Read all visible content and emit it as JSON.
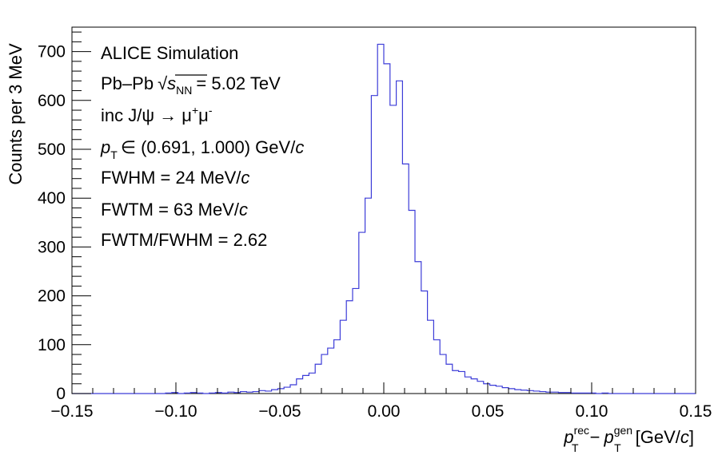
{
  "chart_data": {
    "type": "histogram",
    "xlabel": {
      "p1": "p",
      "sub1": "T",
      "sup1": "rec",
      "minus": "−",
      "p2": "p",
      "sub2": "T",
      "sup2": "gen",
      "unit_open": "[GeV/",
      "unit_c": "c",
      "unit_close": "]"
    },
    "ylabel": "Counts per 3 MeV",
    "xlim": [
      -0.15,
      0.15
    ],
    "ylim": [
      0,
      750
    ],
    "xticks": [
      -0.15,
      -0.1,
      -0.05,
      0.0,
      0.05,
      0.1,
      0.15
    ],
    "xtick_labels": [
      "−0.15",
      "−0.10",
      "−0.05",
      "0.00",
      "0.05",
      "0.10",
      "0.15"
    ],
    "yticks": [
      0,
      100,
      200,
      300,
      400,
      500,
      600,
      700
    ],
    "ytick_labels": [
      "0",
      "100",
      "200",
      "300",
      "400",
      "500",
      "600",
      "700"
    ],
    "bin_width": 0.003,
    "line_color": "#3c3cd8",
    "annotations": {
      "line1": "ALICE Simulation",
      "line2": {
        "pre": "Pb–Pb",
        "root": "√",
        "s": "s",
        "sub": "NN",
        "post": "= 5.02 TeV"
      },
      "line3": {
        "pre": "inc J/ψ → μ",
        "sup1": "+",
        "mid": "μ",
        "sup2": "-"
      },
      "line4": {
        "p": "p",
        "sub": "T",
        "mid": "∈ (0.691, 1.000) GeV/",
        "c": "c"
      },
      "line5": {
        "pre": "FWHM = 24 MeV/",
        "c": "c"
      },
      "line6": {
        "pre": "FWTM = 63 MeV/",
        "c": "c"
      },
      "line7": "FWTM/FWHM = 2.62"
    },
    "bin_edges": [
      -0.15,
      -0.147,
      -0.144,
      -0.141,
      -0.138,
      -0.135,
      -0.132,
      -0.129,
      -0.126,
      -0.123,
      -0.12,
      -0.117,
      -0.114,
      -0.111,
      -0.108,
      -0.105,
      -0.102,
      -0.099,
      -0.096,
      -0.093,
      -0.09,
      -0.087,
      -0.084,
      -0.081,
      -0.078,
      -0.075,
      -0.072,
      -0.069,
      -0.066,
      -0.063,
      -0.06,
      -0.057,
      -0.054,
      -0.051,
      -0.048,
      -0.045,
      -0.042,
      -0.039,
      -0.036,
      -0.033,
      -0.03,
      -0.027,
      -0.024,
      -0.021,
      -0.018,
      -0.015,
      -0.012,
      -0.009,
      -0.006,
      -0.003,
      0.0,
      0.003,
      0.006,
      0.009,
      0.012,
      0.015,
      0.018,
      0.021,
      0.024,
      0.027,
      0.03,
      0.033,
      0.036,
      0.039,
      0.042,
      0.045,
      0.048,
      0.051,
      0.054,
      0.057,
      0.06,
      0.063,
      0.066,
      0.069,
      0.072,
      0.075,
      0.078,
      0.081,
      0.084,
      0.087,
      0.09,
      0.093,
      0.096,
      0.099,
      0.102,
      0.105,
      0.108,
      0.111,
      0.114,
      0.117,
      0.12,
      0.123,
      0.126,
      0.129,
      0.132,
      0.135,
      0.138,
      0.141,
      0.144,
      0.147,
      0.15
    ],
    "counts": [
      0,
      0,
      0,
      0,
      0,
      0,
      0,
      0,
      0,
      0,
      0,
      0,
      0,
      0,
      0,
      1,
      2,
      0,
      1,
      2,
      1,
      0,
      1,
      2,
      1,
      3,
      2,
      4,
      3,
      4,
      6,
      5,
      8,
      10,
      13,
      18,
      30,
      37,
      42,
      60,
      80,
      93,
      110,
      150,
      190,
      215,
      330,
      400,
      610,
      715,
      675,
      590,
      640,
      470,
      375,
      270,
      210,
      150,
      110,
      80,
      60,
      47,
      45,
      34,
      30,
      25,
      20,
      17,
      15,
      12,
      10,
      8,
      7,
      6,
      5,
      4,
      3,
      3,
      2,
      2,
      1,
      1,
      1,
      1,
      0,
      1,
      0,
      0,
      0,
      0,
      0,
      0,
      0,
      0,
      0,
      0,
      0,
      0,
      0,
      0
    ]
  }
}
